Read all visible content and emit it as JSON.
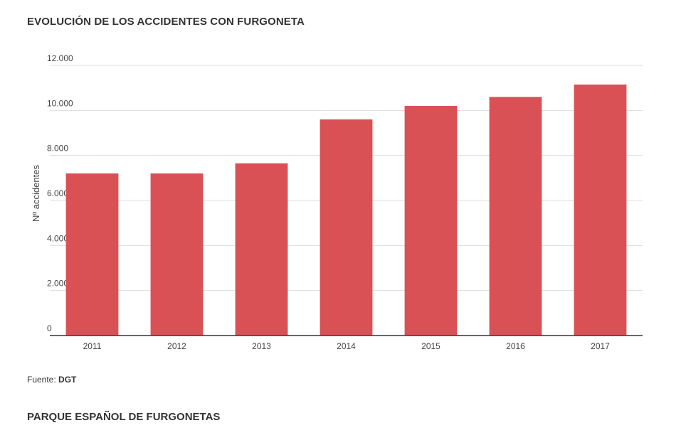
{
  "header": {
    "title": "EVOLUCIÓN DE LOS ACCIDENTES CON FURGONETA"
  },
  "footer": {
    "source_label": "Fuente:",
    "source_name": "DGT",
    "next_section_title": "PARQUE ESPAÑOL DE FURGONETAS"
  },
  "colors": {
    "bar": "#d95155",
    "grid": "#dddddd",
    "axis": "#333333"
  },
  "chart_data": {
    "type": "bar",
    "title": "EVOLUCIÓN DE LOS ACCIDENTES CON FURGONETA",
    "xlabel": "",
    "ylabel": "Nº accidentes",
    "categories": [
      "2011",
      "2012",
      "2013",
      "2014",
      "2015",
      "2016",
      "2017"
    ],
    "values": [
      7200,
      7200,
      7650,
      9600,
      10200,
      10600,
      11150
    ],
    "ylim": [
      0,
      12000
    ],
    "yticks": [
      0,
      2000,
      4000,
      6000,
      8000,
      10000,
      12000
    ],
    "ytick_labels": [
      "0",
      "2.000",
      "4.000",
      "6.000",
      "8.000",
      "10.000",
      "12.000"
    ],
    "grid": true,
    "legend": "none"
  }
}
